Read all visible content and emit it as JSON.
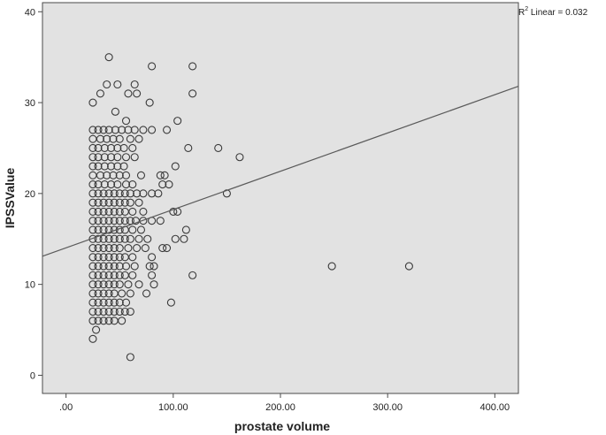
{
  "chart_data": {
    "type": "scatter",
    "title": "",
    "xlabel": "prostate volume",
    "ylabel": "IPSSValue",
    "xlim": [
      -22,
      422
    ],
    "ylim": [
      -2,
      41
    ],
    "x_ticks": [
      0,
      100,
      200,
      300,
      400
    ],
    "x_tick_labels": [
      ".00",
      "100.00",
      "200.00",
      "300.00",
      "400.00"
    ],
    "y_ticks": [
      0,
      10,
      20,
      30,
      40
    ],
    "y_tick_labels": [
      "0",
      "10",
      "20",
      "30",
      "40"
    ],
    "grid": false,
    "background": "#e2e2e2",
    "marker": "open-circle",
    "fit_line": {
      "type": "linear",
      "label_prefix": "R",
      "label_sup": "2",
      "label_suffix": " Linear = 0.032",
      "x": [
        -22,
        422
      ],
      "y": [
        13.1,
        31.8
      ]
    },
    "points": [
      [
        40,
        35
      ],
      [
        80,
        34
      ],
      [
        118,
        34
      ],
      [
        38,
        32
      ],
      [
        48,
        32
      ],
      [
        64,
        32
      ],
      [
        32,
        31
      ],
      [
        58,
        31
      ],
      [
        66,
        31
      ],
      [
        118,
        31
      ],
      [
        25,
        30
      ],
      [
        78,
        30
      ],
      [
        46,
        29
      ],
      [
        104,
        28
      ],
      [
        56,
        28
      ],
      [
        25,
        27
      ],
      [
        30,
        27
      ],
      [
        35,
        27
      ],
      [
        40,
        27
      ],
      [
        46,
        27
      ],
      [
        52,
        27
      ],
      [
        58,
        27
      ],
      [
        64,
        27
      ],
      [
        72,
        27
      ],
      [
        80,
        27
      ],
      [
        94,
        27
      ],
      [
        25,
        26
      ],
      [
        32,
        26
      ],
      [
        38,
        26
      ],
      [
        44,
        26
      ],
      [
        50,
        26
      ],
      [
        60,
        26
      ],
      [
        68,
        26
      ],
      [
        25,
        25
      ],
      [
        30,
        25
      ],
      [
        36,
        25
      ],
      [
        42,
        25
      ],
      [
        48,
        25
      ],
      [
        54,
        25
      ],
      [
        62,
        25
      ],
      [
        114,
        25
      ],
      [
        142,
        25
      ],
      [
        25,
        24
      ],
      [
        30,
        24
      ],
      [
        36,
        24
      ],
      [
        42,
        24
      ],
      [
        48,
        24
      ],
      [
        56,
        24
      ],
      [
        64,
        24
      ],
      [
        162,
        24
      ],
      [
        25,
        23
      ],
      [
        30,
        23
      ],
      [
        36,
        23
      ],
      [
        42,
        23
      ],
      [
        48,
        23
      ],
      [
        54,
        23
      ],
      [
        102,
        23
      ],
      [
        25,
        22
      ],
      [
        32,
        22
      ],
      [
        38,
        22
      ],
      [
        44,
        22
      ],
      [
        50,
        22
      ],
      [
        56,
        22
      ],
      [
        70,
        22
      ],
      [
        88,
        22
      ],
      [
        92,
        22
      ],
      [
        25,
        21
      ],
      [
        30,
        21
      ],
      [
        36,
        21
      ],
      [
        42,
        21
      ],
      [
        48,
        21
      ],
      [
        56,
        21
      ],
      [
        62,
        21
      ],
      [
        90,
        21
      ],
      [
        96,
        21
      ],
      [
        25,
        20
      ],
      [
        30,
        20
      ],
      [
        35,
        20
      ],
      [
        40,
        20
      ],
      [
        45,
        20
      ],
      [
        50,
        20
      ],
      [
        55,
        20
      ],
      [
        60,
        20
      ],
      [
        66,
        20
      ],
      [
        72,
        20
      ],
      [
        80,
        20
      ],
      [
        86,
        20
      ],
      [
        150,
        20
      ],
      [
        25,
        19
      ],
      [
        30,
        19
      ],
      [
        35,
        19
      ],
      [
        40,
        19
      ],
      [
        45,
        19
      ],
      [
        50,
        19
      ],
      [
        55,
        19
      ],
      [
        60,
        19
      ],
      [
        68,
        19
      ],
      [
        25,
        18
      ],
      [
        30,
        18
      ],
      [
        35,
        18
      ],
      [
        40,
        18
      ],
      [
        45,
        18
      ],
      [
        50,
        18
      ],
      [
        55,
        18
      ],
      [
        62,
        18
      ],
      [
        72,
        18
      ],
      [
        100,
        18
      ],
      [
        104,
        18
      ],
      [
        25,
        17
      ],
      [
        30,
        17
      ],
      [
        35,
        17
      ],
      [
        40,
        17
      ],
      [
        45,
        17
      ],
      [
        50,
        17
      ],
      [
        55,
        17
      ],
      [
        60,
        17
      ],
      [
        65,
        17
      ],
      [
        72,
        17
      ],
      [
        80,
        17
      ],
      [
        88,
        17
      ],
      [
        25,
        16
      ],
      [
        30,
        16
      ],
      [
        35,
        16
      ],
      [
        40,
        16
      ],
      [
        45,
        16
      ],
      [
        50,
        16
      ],
      [
        55,
        16
      ],
      [
        62,
        16
      ],
      [
        70,
        16
      ],
      [
        112,
        16
      ],
      [
        25,
        15
      ],
      [
        30,
        15
      ],
      [
        35,
        15
      ],
      [
        40,
        15
      ],
      [
        45,
        15
      ],
      [
        50,
        15
      ],
      [
        55,
        15
      ],
      [
        60,
        15
      ],
      [
        68,
        15
      ],
      [
        76,
        15
      ],
      [
        102,
        15
      ],
      [
        110,
        15
      ],
      [
        25,
        14
      ],
      [
        30,
        14
      ],
      [
        35,
        14
      ],
      [
        40,
        14
      ],
      [
        45,
        14
      ],
      [
        50,
        14
      ],
      [
        58,
        14
      ],
      [
        66,
        14
      ],
      [
        74,
        14
      ],
      [
        90,
        14
      ],
      [
        94,
        14
      ],
      [
        25,
        13
      ],
      [
        30,
        13
      ],
      [
        35,
        13
      ],
      [
        40,
        13
      ],
      [
        45,
        13
      ],
      [
        50,
        13
      ],
      [
        55,
        13
      ],
      [
        62,
        13
      ],
      [
        80,
        13
      ],
      [
        25,
        12
      ],
      [
        30,
        12
      ],
      [
        35,
        12
      ],
      [
        40,
        12
      ],
      [
        45,
        12
      ],
      [
        50,
        12
      ],
      [
        56,
        12
      ],
      [
        64,
        12
      ],
      [
        78,
        12
      ],
      [
        82,
        12
      ],
      [
        248,
        12
      ],
      [
        320,
        12
      ],
      [
        25,
        11
      ],
      [
        30,
        11
      ],
      [
        35,
        11
      ],
      [
        40,
        11
      ],
      [
        45,
        11
      ],
      [
        50,
        11
      ],
      [
        55,
        11
      ],
      [
        62,
        11
      ],
      [
        80,
        11
      ],
      [
        118,
        11
      ],
      [
        25,
        10
      ],
      [
        30,
        10
      ],
      [
        35,
        10
      ],
      [
        40,
        10
      ],
      [
        45,
        10
      ],
      [
        50,
        10
      ],
      [
        58,
        10
      ],
      [
        68,
        10
      ],
      [
        82,
        10
      ],
      [
        25,
        9
      ],
      [
        30,
        9
      ],
      [
        35,
        9
      ],
      [
        40,
        9
      ],
      [
        45,
        9
      ],
      [
        52,
        9
      ],
      [
        60,
        9
      ],
      [
        75,
        9
      ],
      [
        25,
        8
      ],
      [
        30,
        8
      ],
      [
        35,
        8
      ],
      [
        40,
        8
      ],
      [
        45,
        8
      ],
      [
        50,
        8
      ],
      [
        56,
        8
      ],
      [
        98,
        8
      ],
      [
        25,
        7
      ],
      [
        30,
        7
      ],
      [
        35,
        7
      ],
      [
        40,
        7
      ],
      [
        45,
        7
      ],
      [
        50,
        7
      ],
      [
        55,
        7
      ],
      [
        60,
        7
      ],
      [
        25,
        6
      ],
      [
        30,
        6
      ],
      [
        35,
        6
      ],
      [
        40,
        6
      ],
      [
        45,
        6
      ],
      [
        52,
        6
      ],
      [
        28,
        5
      ],
      [
        25,
        4
      ],
      [
        60,
        2
      ]
    ]
  }
}
